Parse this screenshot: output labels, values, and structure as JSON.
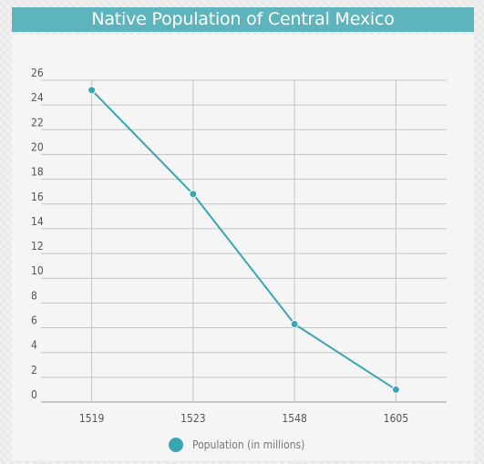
{
  "title": "Native Population of Central Mexico",
  "colors": {
    "title_bg": "#5eb4bd",
    "series": "#3aa6b4",
    "grid": "#c4c4c4",
    "text": "#555555"
  },
  "chart_data": {
    "type": "line",
    "categories": [
      "1519",
      "1523",
      "1548",
      "1605"
    ],
    "series": [
      {
        "name": "Population (in millions)",
        "values": [
          25.2,
          16.8,
          6.3,
          1.0
        ]
      }
    ],
    "ylim": [
      0,
      26
    ],
    "yticks": [
      0,
      2,
      4,
      6,
      8,
      10,
      12,
      14,
      16,
      18,
      20,
      22,
      24,
      26
    ],
    "grid": true,
    "legend": "bottom"
  }
}
